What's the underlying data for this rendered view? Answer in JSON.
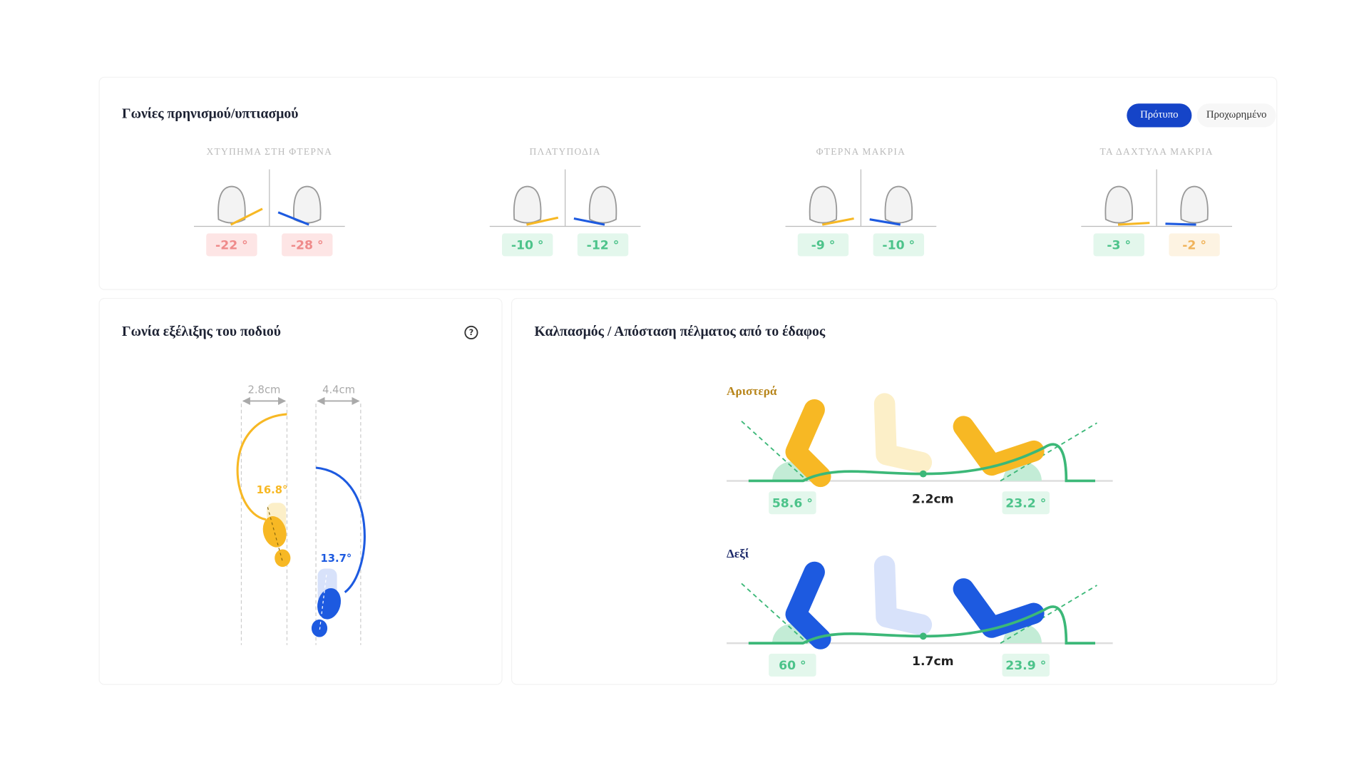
{
  "posture": {
    "title": "Γωνίες πρηνισμού/υπτιασμού",
    "modes": [
      "Πρότυπο",
      "Προχωρημένο"
    ],
    "phases": [
      {
        "label": "ΧΤΥΠΗΜΑ ΣΤΗ ΦΤΕΡΝΑ",
        "left": "-22 °",
        "right": "-28 °"
      },
      {
        "label": "ΠΛΑΤΥΠΟΔΙΑ",
        "left": "-10 °",
        "right": "-12 °"
      },
      {
        "label": "ΦΤΕΡΝΑ ΜΑΚΡΙΑ",
        "left": "-9 °",
        "right": "-10 °"
      },
      {
        "label": "ΤΑ ΔΑΧΤΥΛΑ ΜΑΚΡΙΑ",
        "left": "-3 °",
        "right": "-2 °"
      }
    ]
  },
  "progression": {
    "title": "Γωνία εξέλιξης του ποδιού",
    "left": {
      "width": "2.8cm",
      "angle": "16.8°"
    },
    "right": {
      "width": "4.4cm",
      "angle": "13.7°"
    }
  },
  "clearance": {
    "title": "Καλπασμός / Απόσταση πέλματος από το έδαφος",
    "rows": [
      {
        "side": "Αριστερά",
        "strike": "58.6 °",
        "clearance": "2.2cm",
        "toe_off": "23.2 °"
      },
      {
        "side": "Δεξί",
        "strike": "60 °",
        "clearance": "1.7cm",
        "toe_off": "23.9 °"
      }
    ]
  }
}
